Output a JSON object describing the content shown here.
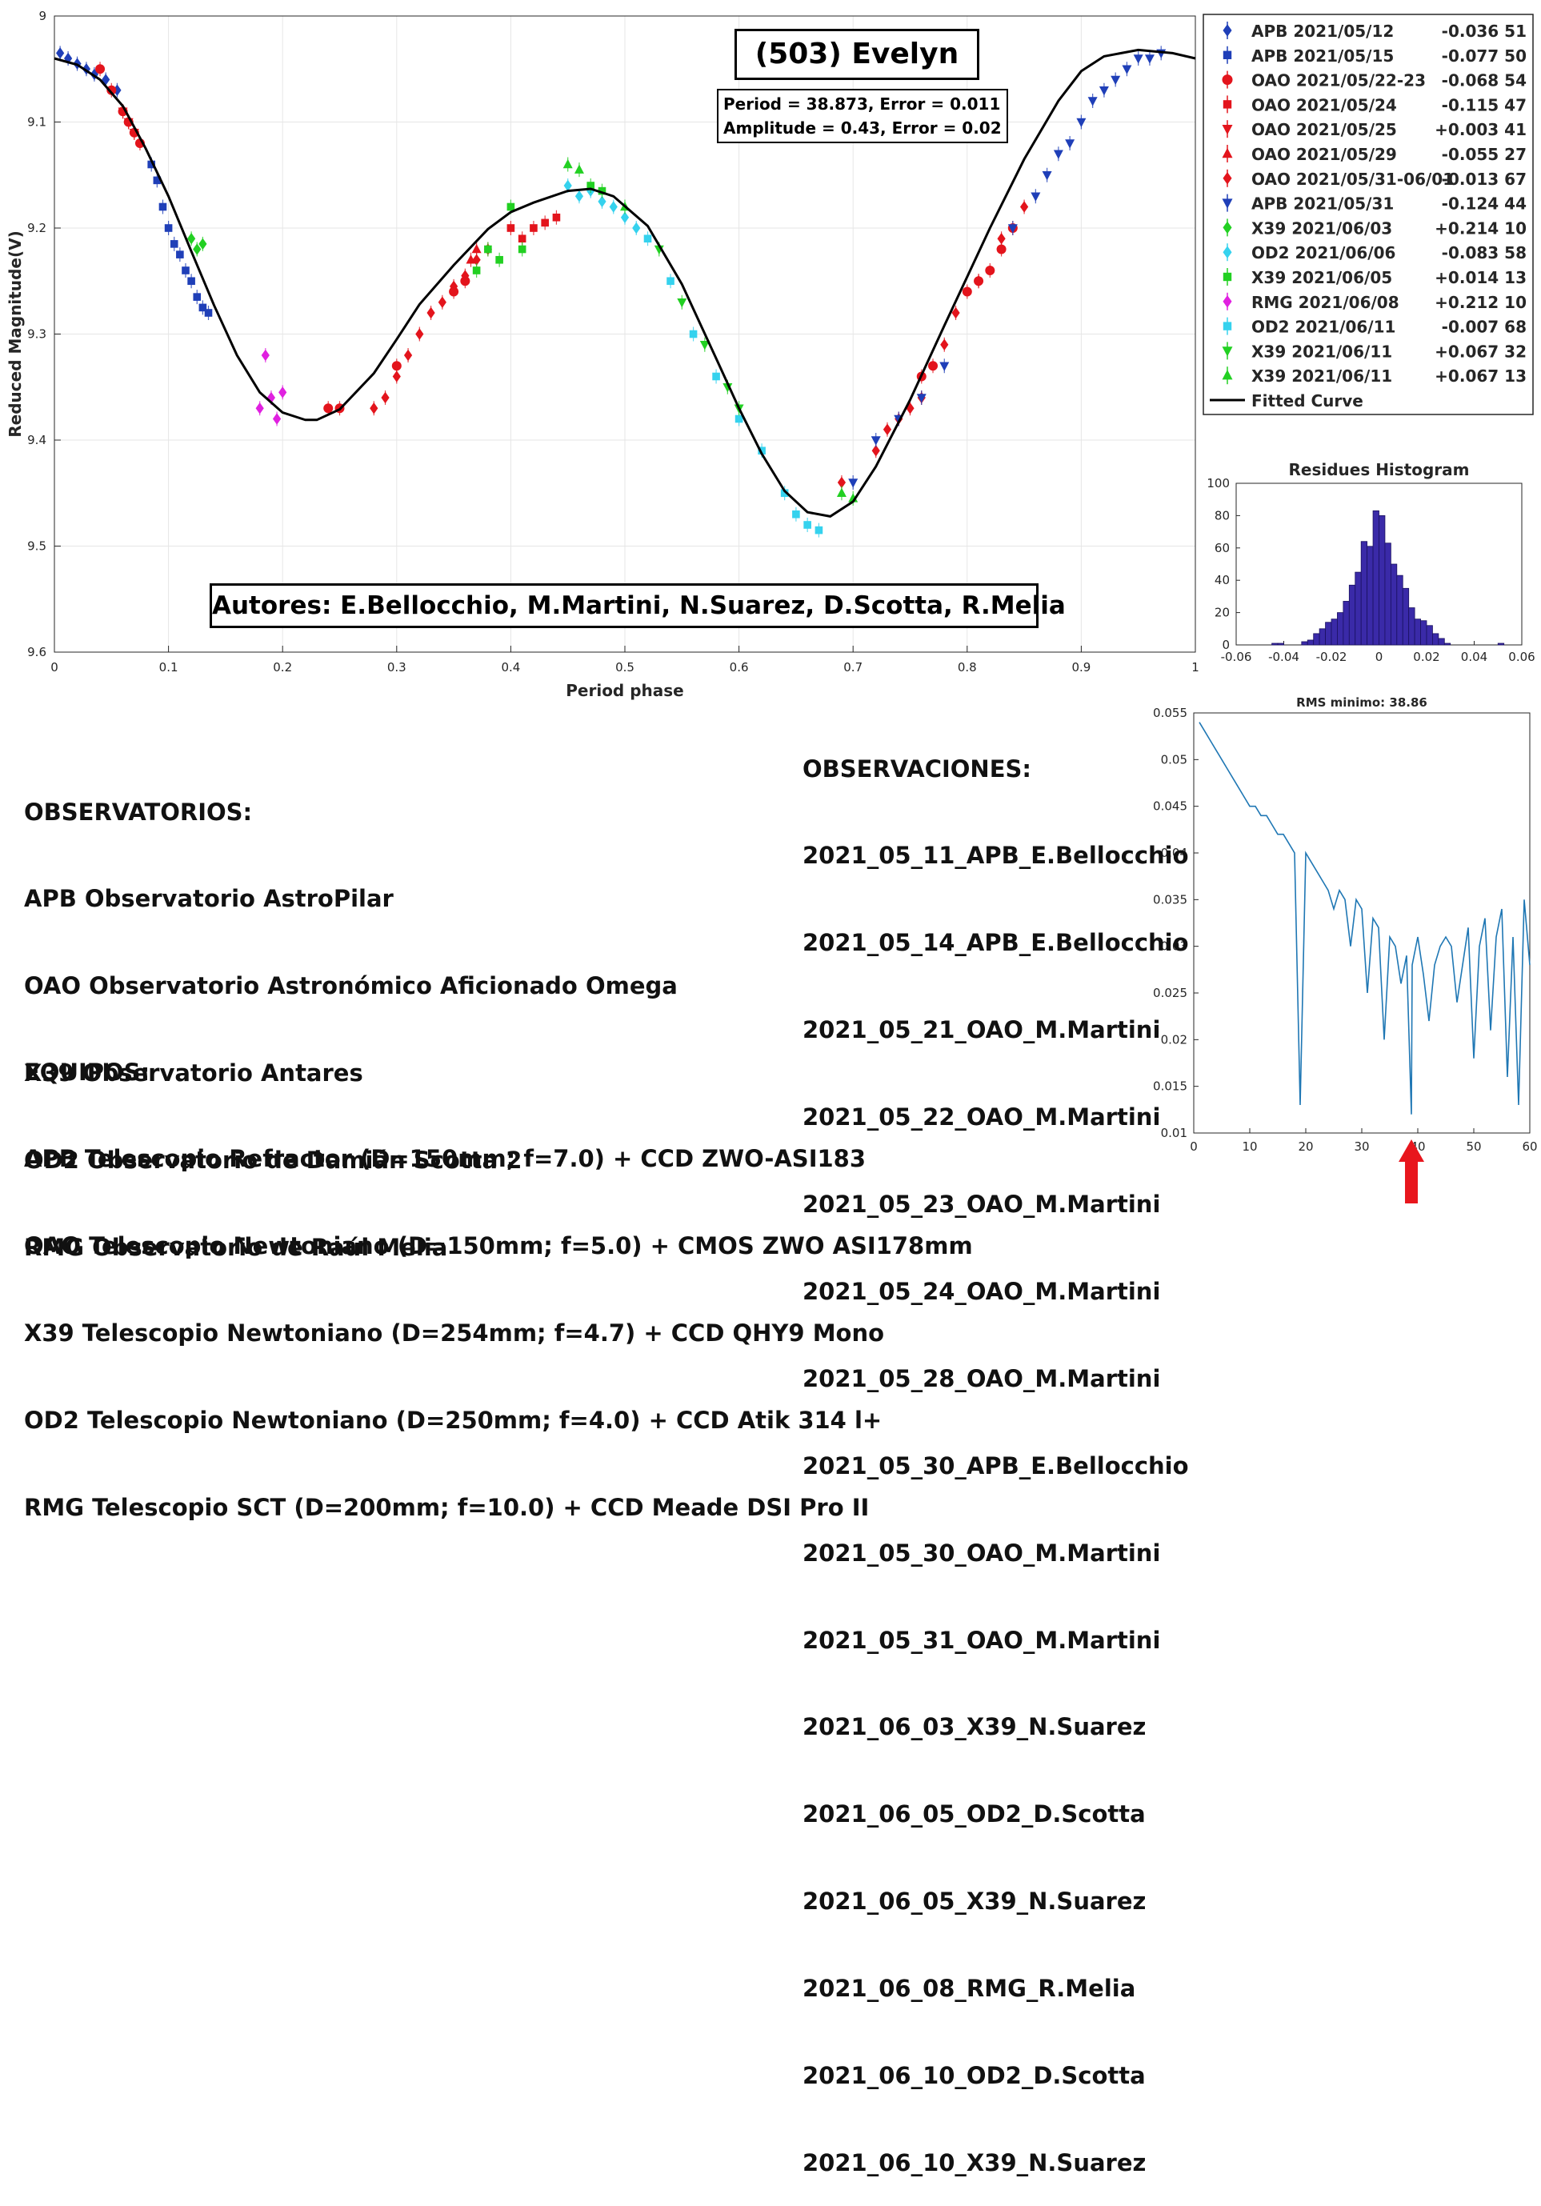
{
  "main_chart": {
    "title": "(503) Evelyn",
    "info_lines": [
      "Period =  38.873, Error = 0.011",
      "Amplitude = 0.43, Error = 0.02"
    ],
    "authors": "Autores: E.Bellocchio, M.Martini, N.Suarez, D.Scotta, R.Melia",
    "xlabel": "Period phase",
    "ylabel": "Reduced Magnitude(V)",
    "x_ticks": [
      "0",
      "0.1",
      "0.2",
      "0.3",
      "0.4",
      "0.5",
      "0.6",
      "0.7",
      "0.8",
      "0.9",
      "1"
    ],
    "y_ticks": [
      "9",
      "9.1",
      "9.2",
      "9.3",
      "9.4",
      "9.5",
      "9.6"
    ],
    "legend": [
      {
        "label": "APB 2021/05/12",
        "offset": "-0.036 51",
        "color": "#1f3fb8",
        "marker": "diamond"
      },
      {
        "label": "APB 2021/05/15",
        "offset": "-0.077 50",
        "color": "#1f3fb8",
        "marker": "square"
      },
      {
        "label": "OAO 2021/05/22-23",
        "offset": "-0.068 54",
        "color": "#e3141c",
        "marker": "circle"
      },
      {
        "label": "OAO 2021/05/24",
        "offset": "-0.115 47",
        "color": "#e3141c",
        "marker": "square"
      },
      {
        "label": "OAO 2021/05/25",
        "offset": "+0.003 41",
        "color": "#e3141c",
        "marker": "triangle-down"
      },
      {
        "label": "OAO 2021/05/29",
        "offset": "-0.055 27",
        "color": "#e3141c",
        "marker": "triangle-up"
      },
      {
        "label": "OAO 2021/05/31-06/01",
        "offset": "-0.013 67",
        "color": "#e3141c",
        "marker": "diamond"
      },
      {
        "label": "APB 2021/05/31",
        "offset": "-0.124 44",
        "color": "#1f3fb8",
        "marker": "triangle-down"
      },
      {
        "label": "X39 2021/06/03",
        "offset": "+0.214 10",
        "color": "#22d022",
        "marker": "diamond"
      },
      {
        "label": "OD2 2021/06/06",
        "offset": "-0.083 58",
        "color": "#35d2ee",
        "marker": "diamond"
      },
      {
        "label": "X39 2021/06/05",
        "offset": "+0.014 13",
        "color": "#22d022",
        "marker": "square"
      },
      {
        "label": "RMG 2021/06/08",
        "offset": "+0.212 10",
        "color": "#e020e0",
        "marker": "diamond"
      },
      {
        "label": "OD2 2021/06/11",
        "offset": "-0.007 68",
        "color": "#35d2ee",
        "marker": "square"
      },
      {
        "label": "X39 2021/06/11",
        "offset": "+0.067 32",
        "color": "#22d022",
        "marker": "triangle-down"
      },
      {
        "label": "X39 2021/06/11",
        "offset": "+0.067 13",
        "color": "#22d022",
        "marker": "triangle-up"
      },
      {
        "label": "Fitted Curve",
        "offset": "",
        "color": "#000000",
        "marker": "line"
      }
    ]
  },
  "histogram": {
    "title": "Residues Histogram",
    "x_ticks": [
      "-0.06",
      "-0.04",
      "-0.02",
      "0",
      "0.02",
      "0.04",
      "0.06"
    ],
    "y_ticks": [
      "0",
      "20",
      "40",
      "60",
      "80",
      "100"
    ]
  },
  "rms_chart": {
    "title": "RMS minimo: 38.86",
    "x_ticks": [
      "0",
      "10",
      "20",
      "30",
      "40",
      "50",
      "60"
    ],
    "y_ticks": [
      "0.01",
      "0.015",
      "0.02",
      "0.025",
      "0.03",
      "0.035",
      "0.04",
      "0.045",
      "0.05",
      "0.055"
    ]
  },
  "observatorios": {
    "heading": "OBSERVATORIOS:",
    "items": [
      "APB Observatorio AstroPilar",
      "OAO Observatorio Astronómico Aficionado Omega",
      "X39 Observatorio Antares",
      "OD2 Observatorio de Damián Scotta 2",
      "RMG Observatorio de Raúl Melia"
    ]
  },
  "equipos": {
    "heading": "EQUIPOS:",
    "items": [
      "APB Telescopio Refractor (D=150mm; f=7.0) + CCD ZWO-ASI183",
      "OAO Telescopio Newtoniano (D=150mm; f=5.0) + CMOS ZWO ASI178mm",
      "X39 Telescopio Newtoniano (D=254mm; f=4.7) + CCD QHY9 Mono",
      "OD2 Telescopio Newtoniano (D=250mm; f=4.0) + CCD Atik 314 l+",
      "RMG Telescopio SCT (D=200mm; f=10.0) + CCD Meade DSI Pro II"
    ]
  },
  "observaciones": {
    "heading": "OBSERVACIONES:",
    "items": [
      "2021_05_11_APB_E.Bellocchio",
      "2021_05_14_APB_E.Bellocchio",
      "2021_05_21_OAO_M.Martini",
      "2021_05_22_OAO_M.Martini",
      "2021_05_23_OAO_M.Martini",
      "2021_05_24_OAO_M.Martini",
      "2021_05_28_OAO_M.Martini",
      "2021_05_30_APB_E.Bellocchio",
      "2021_05_30_OAO_M.Martini",
      "2021_05_31_OAO_M.Martini",
      "2021_06_03_X39_N.Suarez",
      "2021_06_05_OD2_D.Scotta",
      "2021_06_05_X39_N.Suarez",
      "2021_06_08_RMG_R.Melia",
      "2021_06_10_OD2_D.Scotta",
      "2021_06_10_X39_N.Suarez"
    ]
  },
  "chart_data": [
    {
      "type": "scatter",
      "title": "(503) Evelyn",
      "xlabel": "Period phase",
      "ylabel": "Reduced Magnitude(V)",
      "xlim": [
        0,
        1
      ],
      "ylim": [
        9,
        9.6
      ],
      "y_reversed": true,
      "grid": true,
      "legend_position": "right",
      "fitted_curve": {
        "name": "Fitted Curve",
        "x": [
          0,
          0.02,
          0.04,
          0.06,
          0.08,
          0.1,
          0.12,
          0.14,
          0.16,
          0.18,
          0.2,
          0.22,
          0.23,
          0.25,
          0.28,
          0.3,
          0.32,
          0.35,
          0.38,
          0.4,
          0.42,
          0.45,
          0.47,
          0.49,
          0.52,
          0.55,
          0.58,
          0.6,
          0.62,
          0.64,
          0.66,
          0.68,
          0.7,
          0.72,
          0.75,
          0.78,
          0.8,
          0.82,
          0.85,
          0.88,
          0.9,
          0.92,
          0.95,
          0.98,
          1
        ],
        "y": [
          9.04,
          9.046,
          9.06,
          9.085,
          9.125,
          9.17,
          9.222,
          9.273,
          9.32,
          9.355,
          9.374,
          9.381,
          9.381,
          9.371,
          9.337,
          9.305,
          9.272,
          9.235,
          9.201,
          9.185,
          9.176,
          9.165,
          9.163,
          9.17,
          9.198,
          9.253,
          9.323,
          9.37,
          9.413,
          9.448,
          9.468,
          9.472,
          9.458,
          9.425,
          9.362,
          9.292,
          9.246,
          9.2,
          9.135,
          9.08,
          9.052,
          9.038,
          9.032,
          9.035,
          9.04
        ]
      },
      "series": [
        {
          "name": "APB 2021/05/12",
          "x": [
            0.005,
            0.012,
            0.02,
            0.028,
            0.035,
            0.045,
            0.055
          ],
          "y": [
            9.035,
            9.04,
            9.045,
            9.05,
            9.055,
            9.06,
            9.07
          ]
        },
        {
          "name": "APB 2021/05/15",
          "x": [
            0.085,
            0.09,
            0.095,
            0.1,
            0.105,
            0.11,
            0.115,
            0.12,
            0.125,
            0.13,
            0.135
          ],
          "y": [
            9.14,
            9.155,
            9.18,
            9.2,
            9.215,
            9.225,
            9.24,
            9.25,
            9.265,
            9.275,
            9.28
          ]
        },
        {
          "name": "OAO 2021/05/22-23",
          "x": [
            0.04,
            0.05,
            0.06,
            0.065,
            0.07,
            0.075,
            0.24,
            0.25,
            0.3,
            0.35,
            0.36,
            0.76,
            0.77,
            0.8,
            0.81,
            0.82,
            0.83,
            0.84
          ],
          "y": [
            9.05,
            9.07,
            9.09,
            9.1,
            9.11,
            9.12,
            9.37,
            9.37,
            9.33,
            9.26,
            9.25,
            9.34,
            9.33,
            9.26,
            9.25,
            9.24,
            9.22,
            9.2
          ]
        },
        {
          "name": "OAO 2021/05/24",
          "x": [
            0.4,
            0.41,
            0.42,
            0.43,
            0.44
          ],
          "y": [
            9.2,
            9.21,
            9.2,
            9.195,
            9.19
          ]
        },
        {
          "name": "OAO 2021/05/25",
          "x": [
            0.06,
            0.065,
            0.07
          ],
          "y": [
            9.09,
            9.1,
            9.11
          ]
        },
        {
          "name": "OAO 2021/05/29",
          "x": [
            0.365,
            0.37
          ],
          "y": [
            9.23,
            9.22
          ]
        },
        {
          "name": "OAO 2021/05/31-06/01",
          "x": [
            0.28,
            0.29,
            0.3,
            0.31,
            0.32,
            0.33,
            0.34,
            0.35,
            0.36,
            0.37,
            0.38,
            0.72,
            0.73,
            0.74,
            0.75,
            0.76,
            0.78,
            0.79,
            0.81,
            0.83,
            0.85,
            0.69
          ],
          "y": [
            9.37,
            9.36,
            9.34,
            9.32,
            9.3,
            9.28,
            9.27,
            9.255,
            9.245,
            9.23,
            9.22,
            9.41,
            9.39,
            9.38,
            9.37,
            9.36,
            9.31,
            9.28,
            9.25,
            9.21,
            9.18,
            9.44
          ]
        },
        {
          "name": "APB 2021/05/31",
          "x": [
            0.7,
            0.72,
            0.74,
            0.76,
            0.78,
            0.84,
            0.86,
            0.87,
            0.88,
            0.89,
            0.9,
            0.91,
            0.92,
            0.93,
            0.94,
            0.95,
            0.96,
            0.97
          ],
          "y": [
            9.44,
            9.4,
            9.38,
            9.36,
            9.33,
            9.2,
            9.17,
            9.15,
            9.13,
            9.12,
            9.1,
            9.08,
            9.07,
            9.06,
            9.05,
            9.04,
            9.04,
            9.035
          ]
        },
        {
          "name": "X39 2021/06/03",
          "x": [
            0.12,
            0.125,
            0.13
          ],
          "y": [
            9.21,
            9.22,
            9.215
          ]
        },
        {
          "name": "OD2 2021/06/06",
          "x": [
            0.45,
            0.46,
            0.47,
            0.48,
            0.49,
            0.5,
            0.51
          ],
          "y": [
            9.16,
            9.17,
            9.165,
            9.175,
            9.18,
            9.19,
            9.2
          ]
        },
        {
          "name": "X39 2021/06/05",
          "x": [
            0.37,
            0.38,
            0.39,
            0.4,
            0.41,
            0.47,
            0.48
          ],
          "y": [
            9.24,
            9.22,
            9.23,
            9.18,
            9.22,
            9.16,
            9.165
          ]
        },
        {
          "name": "RMG 2021/06/08",
          "x": [
            0.18,
            0.185,
            0.19,
            0.195,
            0.2
          ],
          "y": [
            9.37,
            9.32,
            9.36,
            9.38,
            9.355
          ]
        },
        {
          "name": "OD2 2021/06/11",
          "x": [
            0.52,
            0.54,
            0.56,
            0.58,
            0.6,
            0.62,
            0.64,
            0.65,
            0.66,
            0.67
          ],
          "y": [
            9.21,
            9.25,
            9.3,
            9.34,
            9.38,
            9.41,
            9.45,
            9.47,
            9.48,
            9.485
          ]
        },
        {
          "name": "X39 2021/06/11",
          "x": [
            0.53,
            0.55,
            0.57,
            0.59,
            0.6
          ],
          "y": [
            9.22,
            9.27,
            9.31,
            9.35,
            9.37
          ]
        },
        {
          "name": "X39 2021/06/11",
          "x": [
            0.45,
            0.46,
            0.5,
            0.69,
            0.7
          ],
          "y": [
            9.14,
            9.145,
            9.18,
            9.45,
            9.455
          ]
        }
      ]
    },
    {
      "type": "bar",
      "title": "Residues Histogram",
      "xlim": [
        -0.06,
        0.06
      ],
      "ylim": [
        0,
        100
      ],
      "bin_width": 0.0025,
      "bin_centers": [
        -0.04375,
        -0.04125,
        -0.03125,
        -0.02875,
        -0.02625,
        -0.02375,
        -0.02125,
        -0.01875,
        -0.01625,
        -0.01375,
        -0.01125,
        -0.00875,
        -0.00625,
        -0.00375,
        -0.00125,
        0.00125,
        0.00375,
        0.00625,
        0.00875,
        0.01125,
        0.01375,
        0.01625,
        0.01875,
        0.02125,
        0.02375,
        0.02625,
        0.02875,
        0.05125
      ],
      "counts": [
        1,
        1,
        2,
        3,
        7,
        10,
        14,
        16,
        20,
        27,
        37,
        45,
        64,
        61,
        83,
        80,
        63,
        50,
        43,
        35,
        23,
        16,
        15,
        12,
        7,
        4,
        1,
        1
      ]
    },
    {
      "type": "line",
      "title": "RMS minimo: 38.86",
      "xlim": [
        0,
        60
      ],
      "ylim": [
        0.01,
        0.055
      ],
      "x": [
        1,
        2,
        3,
        4,
        5,
        6,
        7,
        8,
        9,
        10,
        11,
        12,
        13,
        14,
        15,
        16,
        17,
        18,
        19,
        20,
        21,
        22,
        23,
        24,
        25,
        26,
        27,
        28,
        29,
        30,
        31,
        32,
        33,
        34,
        35,
        36,
        37,
        38,
        38.86,
        39,
        40,
        41,
        42,
        43,
        44,
        45,
        46,
        47,
        48,
        49,
        50,
        51,
        52,
        53,
        54,
        55,
        56,
        57,
        58,
        59,
        60
      ],
      "y": [
        0.054,
        0.053,
        0.052,
        0.051,
        0.05,
        0.049,
        0.048,
        0.047,
        0.046,
        0.045,
        0.045,
        0.044,
        0.044,
        0.043,
        0.042,
        0.042,
        0.041,
        0.04,
        0.013,
        0.04,
        0.039,
        0.038,
        0.037,
        0.036,
        0.034,
        0.036,
        0.035,
        0.03,
        0.035,
        0.034,
        0.025,
        0.033,
        0.032,
        0.02,
        0.031,
        0.03,
        0.026,
        0.029,
        0.012,
        0.028,
        0.031,
        0.027,
        0.022,
        0.028,
        0.03,
        0.031,
        0.03,
        0.024,
        0.028,
        0.032,
        0.018,
        0.03,
        0.033,
        0.021,
        0.031,
        0.034,
        0.016,
        0.031,
        0.013,
        0.035,
        0.028
      ]
    }
  ]
}
